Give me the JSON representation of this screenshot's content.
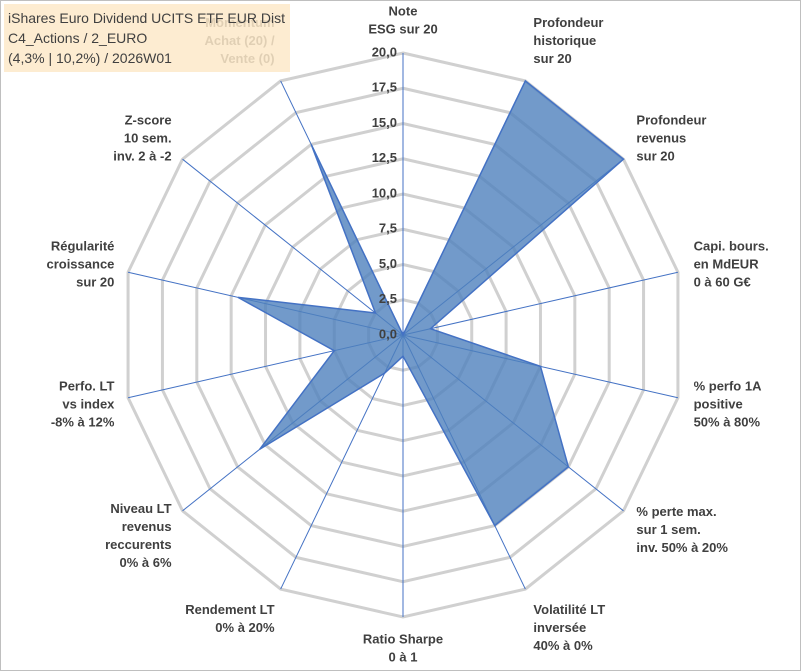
{
  "chart_data": {
    "type": "radar",
    "title": [
      "iShares Euro Dividend UCITS ETF EUR Dist",
      "C4_Actions / 2_EURO",
      "(4,3% | 10,2%) / 2026W01"
    ],
    "categories": [
      [
        "Note",
        "ESG sur 20"
      ],
      [
        "Profondeur",
        "historique",
        "sur 20"
      ],
      [
        "Profondeur",
        "revenus",
        "sur 20"
      ],
      [
        "Capi. bours.",
        "en MdEUR",
        "0 à 60 G€"
      ],
      [
        "% perfo 1A",
        "positive",
        "50% à 80%"
      ],
      [
        "% perte max.",
        "sur 1 sem.",
        "inv. 50% à 20%"
      ],
      [
        "Volatilité LT",
        "inversée",
        "40% à 0%"
      ],
      [
        "Ratio Sharpe",
        "0 à 1"
      ],
      [
        "Rendement LT",
        "0% à 20%"
      ],
      [
        "Niveau LT",
        "revenus",
        "reccurents",
        "0% à 6%"
      ],
      [
        "Perfo. LT",
        "vs index",
        "-8% à 12%"
      ],
      [
        "Régularité",
        "croissance",
        "sur 20"
      ],
      [
        "Z-score",
        "10 sem.",
        "inv. 2 à -2"
      ],
      [
        "Momentum",
        "Achat (20) /",
        "Vente (0)"
      ]
    ],
    "values": [
      0,
      20,
      20,
      2,
      10,
      15,
      15,
      1.5,
      3,
      13,
      5,
      12,
      2.5,
      15
    ],
    "color": "#4f81bd",
    "ylim": [
      0,
      20
    ],
    "yticks": [
      {
        "value": 0,
        "label": "0,0"
      },
      {
        "value": 2.5,
        "label": "2,5"
      },
      {
        "value": 5,
        "label": "5,0"
      },
      {
        "value": 7.5,
        "label": "7,5"
      },
      {
        "value": 10,
        "label": "10,0"
      },
      {
        "value": 12.5,
        "label": "12,5"
      },
      {
        "value": 15,
        "label": "15,0"
      },
      {
        "value": 17.5,
        "label": "17,5"
      },
      {
        "value": 20,
        "label": "20,0"
      }
    ],
    "grid": true
  }
}
